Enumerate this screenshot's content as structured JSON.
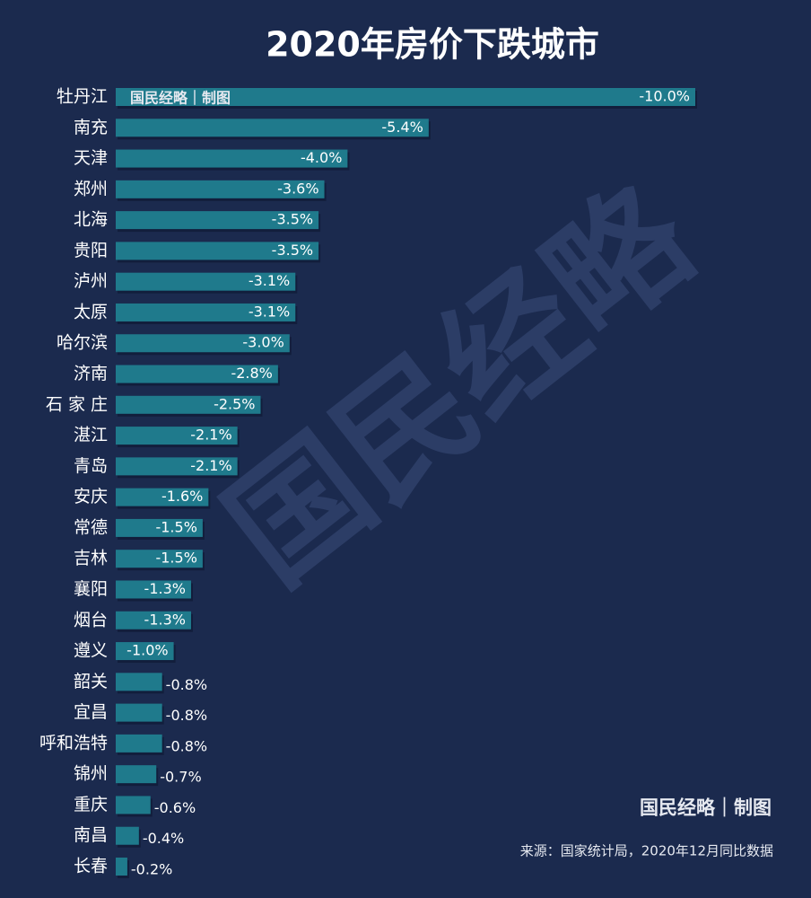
{
  "chart_data": {
    "type": "bar",
    "orientation": "horizontal",
    "title": "2020年房价下跌城市",
    "categories": [
      "牡丹江",
      "南充",
      "天津",
      "郑州",
      "北海",
      "贵阳",
      "泸州",
      "太原",
      "哈尔滨",
      "济南",
      "石 家 庄",
      "湛江",
      "青岛",
      "安庆",
      "常德",
      "吉林",
      "襄阳",
      "烟台",
      "遵义",
      "韶关",
      "宜昌",
      "呼和浩特",
      "锦州",
      "重庆",
      "南昌",
      "长春"
    ],
    "values": [
      -10.0,
      -5.4,
      -4.0,
      -3.6,
      -3.5,
      -3.5,
      -3.1,
      -3.1,
      -3.0,
      -2.8,
      -2.5,
      -2.1,
      -2.1,
      -1.6,
      -1.5,
      -1.5,
      -1.3,
      -1.3,
      -1.0,
      -0.8,
      -0.8,
      -0.8,
      -0.7,
      -0.6,
      -0.4,
      -0.2
    ],
    "value_labels": [
      "-10.0%",
      "-5.4%",
      "-4.0%",
      "-3.6%",
      "-3.5%",
      "-3.5%",
      "-3.1%",
      "-3.1%",
      "-3.0%",
      "-2.8%",
      "-2.5%",
      "-2.1%",
      "-2.1%",
      "-1.6%",
      "-1.5%",
      "-1.5%",
      "-1.3%",
      "-1.3%",
      "-1.0%",
      "-0.8%",
      "-0.8%",
      "-0.8%",
      "-0.7%",
      "-0.6%",
      "-0.4%",
      "-0.2%"
    ],
    "color": "#1f7a8c",
    "xlim": [
      0,
      -10
    ],
    "watermark": "国民经略",
    "credit": "国民经略｜制图",
    "source": "来源：国家统计局，2020年12月同比数据"
  }
}
